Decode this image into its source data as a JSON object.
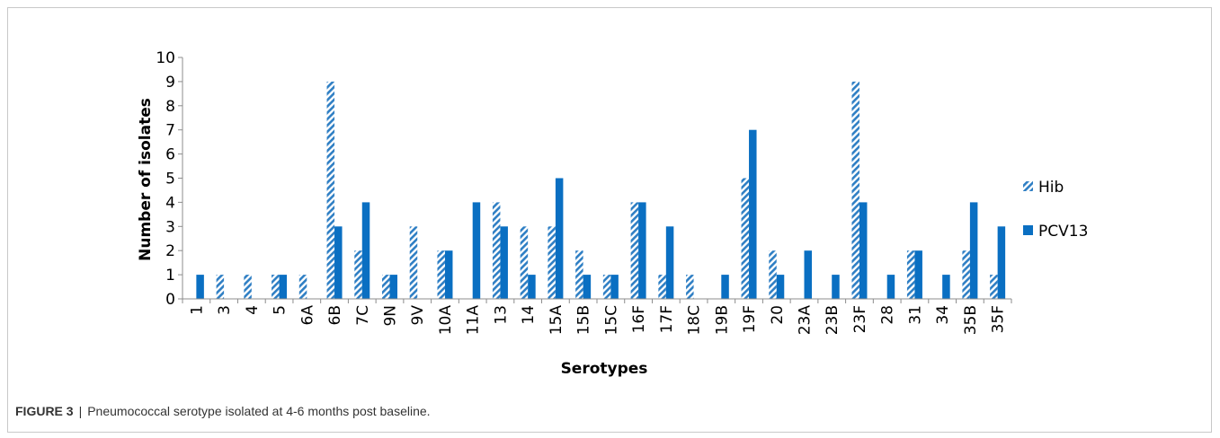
{
  "caption": {
    "label": "FIGURE 3",
    "separator": "|",
    "text": "Pneumococcal serotype isolated at 4-6 months post baseline."
  },
  "chart_data": {
    "type": "bar",
    "xlabel": "Serotypes",
    "ylabel": "Number of isolates",
    "ylim": [
      0,
      10
    ],
    "yticks": [
      0,
      1,
      2,
      3,
      4,
      5,
      6,
      7,
      8,
      9,
      10
    ],
    "grid": false,
    "legend_position": "right",
    "categories": [
      "1",
      "3",
      "4",
      "5",
      "6A",
      "6B",
      "7C",
      "9N",
      "9V",
      "10A",
      "11A",
      "13",
      "14",
      "15A",
      "15B",
      "15C",
      "16F",
      "17F",
      "18C",
      "19B",
      "19F",
      "20",
      "23A",
      "23B",
      "23F",
      "28",
      "31",
      "34",
      "35B",
      "35F"
    ],
    "series": [
      {
        "name": "Hib",
        "color": "#2f7fc4",
        "pattern": "diagonal-hatch",
        "values": [
          0,
          1,
          1,
          1,
          1,
          9,
          2,
          1,
          3,
          2,
          0,
          4,
          3,
          3,
          2,
          1,
          4,
          1,
          1,
          0,
          5,
          2,
          0,
          0,
          9,
          0,
          2,
          0,
          2,
          1
        ]
      },
      {
        "name": "PCV13",
        "color": "#0a6fc2",
        "pattern": "solid",
        "values": [
          1,
          0,
          0,
          1,
          0,
          3,
          4,
          1,
          0,
          2,
          4,
          3,
          1,
          5,
          1,
          1,
          4,
          3,
          0,
          1,
          7,
          1,
          2,
          1,
          4,
          1,
          2,
          1,
          4,
          3
        ]
      }
    ]
  }
}
